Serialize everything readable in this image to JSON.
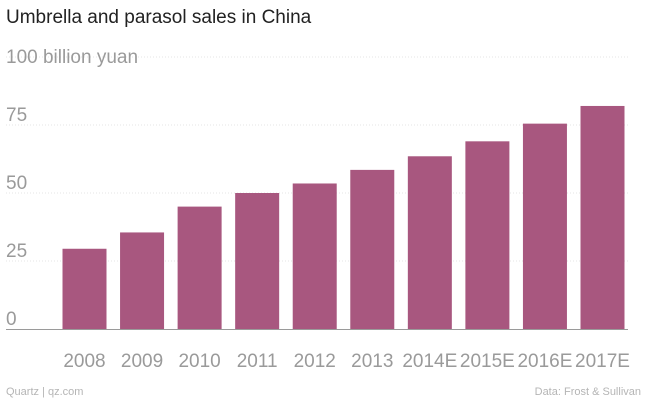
{
  "chart_data": {
    "type": "bar",
    "title": "Umbrella and parasol sales in China",
    "ylabel": "100 billion yuan",
    "xlabel": "",
    "categories": [
      "2008",
      "2009",
      "2010",
      "2011",
      "2012",
      "2013",
      "2014E",
      "2015E",
      "2016E",
      "2017E"
    ],
    "values": [
      29.5,
      35.5,
      45,
      50,
      53.5,
      58.5,
      63.5,
      69,
      75.5,
      82
    ],
    "ylim": [
      0,
      100
    ],
    "yticks": [
      "0",
      "25",
      "50",
      "75"
    ],
    "grid": true,
    "bar_color": "#a8577f"
  },
  "footer": {
    "source_left": "Quartz | qz.com",
    "source_right": "Data: Frost & Sullivan"
  }
}
